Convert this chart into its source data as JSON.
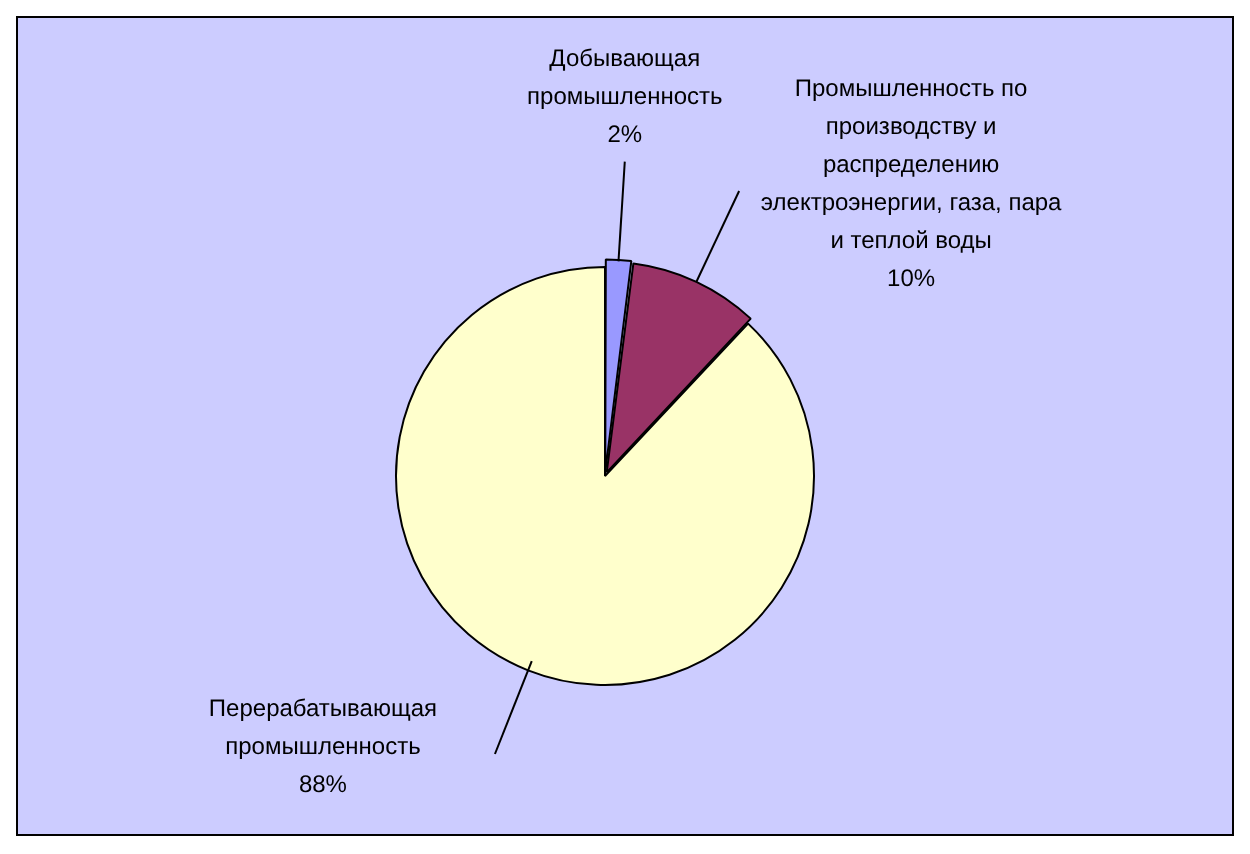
{
  "chart_data": {
    "type": "pie",
    "categories": [
      "Добывающая промышленность",
      "Промышленность по производству и распределению электроэнергии, газа, пара и теплой воды",
      "Перерабатывающая промышленность"
    ],
    "values": [
      2,
      10,
      88
    ],
    "colors": [
      "#9999ff",
      "#993366",
      "#ffffcc"
    ],
    "value_labels": [
      "2%",
      "10%",
      "88%"
    ],
    "legend": false
  }
}
